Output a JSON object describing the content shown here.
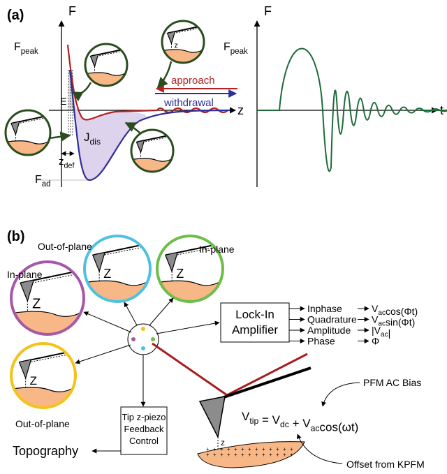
{
  "panel_a": {
    "label": "(a)",
    "left_plot": {
      "y_axis": "F",
      "peak_label": [
        {
          "text": "F",
          "sub": "peak"
        }
      ],
      "x_axis": "z",
      "e_label": "E",
      "jdis_label": [
        {
          "text": "J",
          "sub": "dis"
        }
      ],
      "zdef_label": [
        {
          "text": "z",
          "sub": "def"
        }
      ],
      "fad_label": [
        {
          "text": "F",
          "sub": "ad"
        }
      ],
      "approach": "approach",
      "withdrawal": "withdrawal",
      "approach_color": "#b22222",
      "withdrawal_color": "#2e2e9a",
      "inset_z": "z"
    },
    "right_plot": {
      "y_axis": "F",
      "peak_label": [
        {
          "text": "F",
          "sub": "peak"
        }
      ],
      "x_axis": "t",
      "curve_color": "#1e6b3a"
    }
  },
  "panel_b": {
    "label": "(b)",
    "modes": [
      {
        "label": "In-plane",
        "z": "Z",
        "color": "#a558a8"
      },
      {
        "label": "Out-of-plane",
        "z": "Z",
        "color": "#4fc1e0"
      },
      {
        "label": "In-plane",
        "z": "Z",
        "color": "#6dbd4b"
      },
      {
        "label": "Out-of-plane",
        "z": "Z",
        "color": "#f4c21b"
      }
    ],
    "lockin": [
      "Lock-In",
      "Amplifier"
    ],
    "outputs": [
      {
        "name": "Inphase",
        "result": [
          {
            "text": "V",
            "sub": "ac"
          },
          {
            "text": "cos(Φt)"
          }
        ]
      },
      {
        "name": "Quadrature",
        "result": [
          {
            "text": "V",
            "sub": "ac"
          },
          {
            "text": "sin(Φt)"
          }
        ]
      },
      {
        "name": "Amplitude",
        "result": [
          {
            "text": "|V",
            "sub": "ac"
          },
          {
            "text": "|"
          }
        ]
      },
      {
        "name": "Phase",
        "result": [
          {
            "text": "Φ"
          }
        ]
      }
    ],
    "feedback": [
      "Tip z-piezo",
      "Feedback",
      "Control"
    ],
    "topography": "Topography",
    "equation": [
      {
        "text": "V",
        "sub": "tip"
      },
      {
        "text": " = V",
        "sub": "dc"
      },
      {
        "text": " + V",
        "sub": "ac"
      },
      {
        "text": "cos(ωt)"
      }
    ],
    "tip_z": "z",
    "pfm_bias": "PFM AC Bias",
    "kpfm_offset": "Offset from KPFM",
    "laser_color": "#a51d1d"
  }
}
